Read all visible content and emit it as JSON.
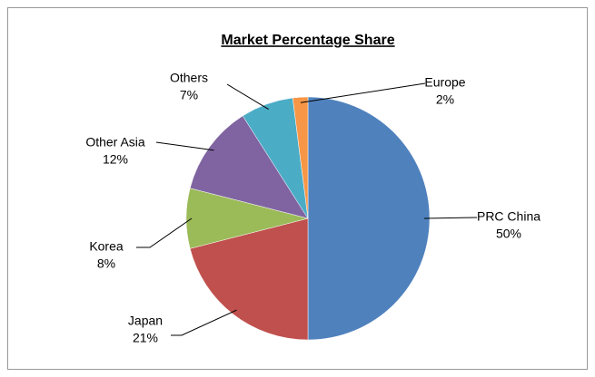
{
  "chart_data": {
    "type": "pie",
    "title": "Market Percentage Share",
    "categories": [
      "PRC China",
      "Japan",
      "Korea",
      "Other Asia",
      "Others",
      "Europe"
    ],
    "values": [
      50,
      21,
      8,
      12,
      7,
      2
    ],
    "value_labels": [
      "50%",
      "21%",
      "8%",
      "12%",
      "7%",
      "2%"
    ],
    "colors": [
      "#4f81bd",
      "#c0504d",
      "#9bbb59",
      "#8064a2",
      "#4bacc6",
      "#f79646"
    ]
  }
}
